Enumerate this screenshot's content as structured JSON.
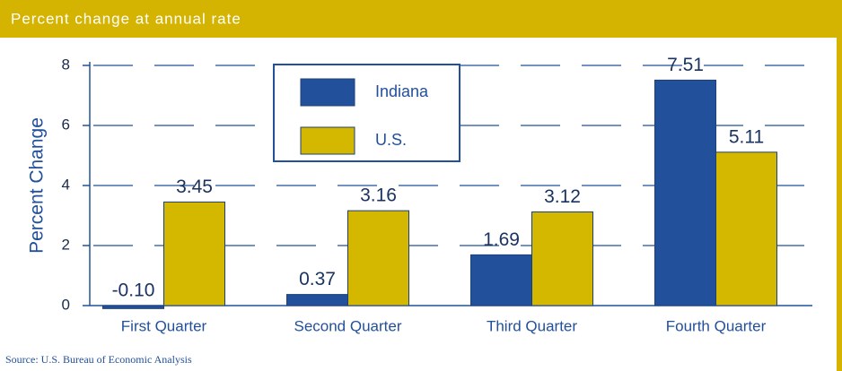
{
  "chart_data": {
    "type": "bar",
    "title": "Percent change at annual rate",
    "y_label": "Percent Change",
    "source": "Source: U.S. Bureau of Economic Analysis",
    "categories": [
      "First Quarter",
      "Second Quarter",
      "Third Quarter",
      "Fourth Quarter"
    ],
    "series": [
      {
        "name": "Indiana",
        "color": "#22509a",
        "values": [
          -0.1,
          0.37,
          1.69,
          7.51
        ],
        "value_labels": [
          "-0.10",
          "0.37",
          "1.69",
          "7.51"
        ]
      },
      {
        "name": "U.S.",
        "color": "#d4b800",
        "values": [
          3.45,
          3.16,
          3.12,
          5.11
        ],
        "value_labels": [
          "3.45",
          "3.16",
          "3.12",
          "5.11"
        ]
      }
    ],
    "ylim": [
      0,
      8
    ],
    "yticks": [
      0,
      2,
      4,
      6,
      8
    ],
    "grid": true
  }
}
